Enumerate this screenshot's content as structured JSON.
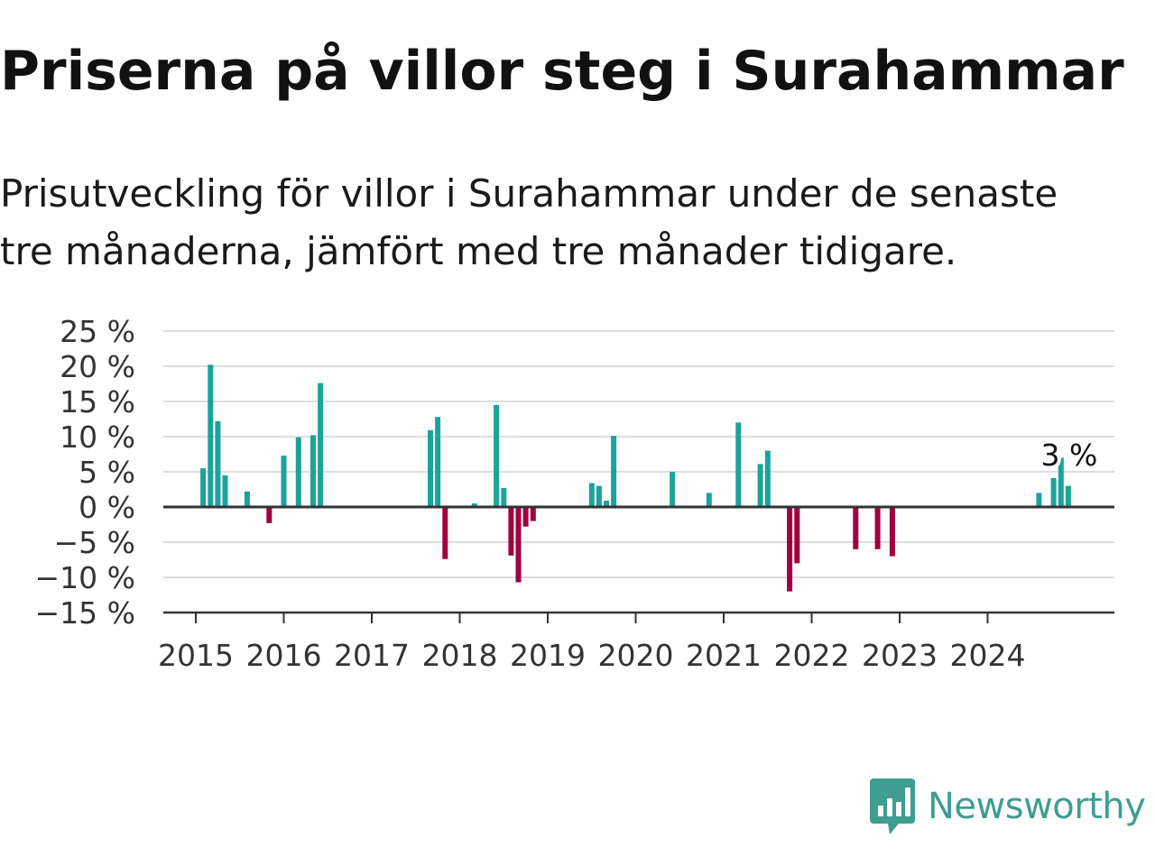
{
  "header": {
    "title": "Priserna på villor steg i Surahammar",
    "subtitle": "Prisutveckling för villor i Surahammar under de senaste tre månaderna, jämfört med tre månader tidigare."
  },
  "brand": {
    "name": "Newsworthy",
    "icon": "newsworthy-logo-icon",
    "color": "#3f9d92"
  },
  "colors": {
    "positive": "#1ba39c",
    "negative": "#a0003f",
    "grid": "#dddddd",
    "axis": "#333333"
  },
  "chart_data": {
    "type": "bar",
    "y_ticks": [
      "25 %",
      "20 %",
      "15 %",
      "10 %",
      "5 %",
      "0 %",
      "−5 %",
      "−10 %",
      "−15 %"
    ],
    "x_ticks": [
      "2015",
      "2016",
      "2017",
      "2018",
      "2019",
      "2020",
      "2021",
      "2022",
      "2023",
      "2024"
    ],
    "ylim": [
      -15,
      25
    ],
    "grid": true,
    "annotation": {
      "label": "3 %",
      "x": "2024-12",
      "y": 3
    },
    "series": [
      {
        "values": [
          {
            "x": "2015-02",
            "y": 5.5
          },
          {
            "x": "2015-03",
            "y": 20.2
          },
          {
            "x": "2015-04",
            "y": 12.2
          },
          {
            "x": "2015-05",
            "y": 4.5
          },
          {
            "x": "2015-08",
            "y": 2.2
          },
          {
            "x": "2015-11",
            "y": -2.3
          },
          {
            "x": "2016-01",
            "y": 7.3
          },
          {
            "x": "2016-03",
            "y": 9.9
          },
          {
            "x": "2016-05",
            "y": 10.2
          },
          {
            "x": "2016-06",
            "y": 17.6
          },
          {
            "x": "2017-09",
            "y": 10.9
          },
          {
            "x": "2017-10",
            "y": 12.8
          },
          {
            "x": "2017-11",
            "y": -7.4
          },
          {
            "x": "2018-03",
            "y": 0.5
          },
          {
            "x": "2018-06",
            "y": 14.5
          },
          {
            "x": "2018-07",
            "y": 2.7
          },
          {
            "x": "2018-08",
            "y": -6.9
          },
          {
            "x": "2018-09",
            "y": -10.7
          },
          {
            "x": "2018-10",
            "y": -2.8
          },
          {
            "x": "2018-11",
            "y": -2.0
          },
          {
            "x": "2019-07",
            "y": 3.4
          },
          {
            "x": "2019-08",
            "y": 3.0
          },
          {
            "x": "2019-09",
            "y": 0.9
          },
          {
            "x": "2019-10",
            "y": 10.1
          },
          {
            "x": "2020-06",
            "y": 5.0
          },
          {
            "x": "2020-11",
            "y": 2.0
          },
          {
            "x": "2021-03",
            "y": 12.0
          },
          {
            "x": "2021-06",
            "y": 6.1
          },
          {
            "x": "2021-07",
            "y": 8.0
          },
          {
            "x": "2021-10",
            "y": -12.0
          },
          {
            "x": "2021-11",
            "y": -8.0
          },
          {
            "x": "2022-07",
            "y": -6.0
          },
          {
            "x": "2022-10",
            "y": -6.0
          },
          {
            "x": "2022-12",
            "y": -7.0
          },
          {
            "x": "2024-08",
            "y": 2.0
          },
          {
            "x": "2024-10",
            "y": 4.1
          },
          {
            "x": "2024-11",
            "y": 7.0
          },
          {
            "x": "2024-12",
            "y": 3.0
          }
        ]
      }
    ]
  }
}
